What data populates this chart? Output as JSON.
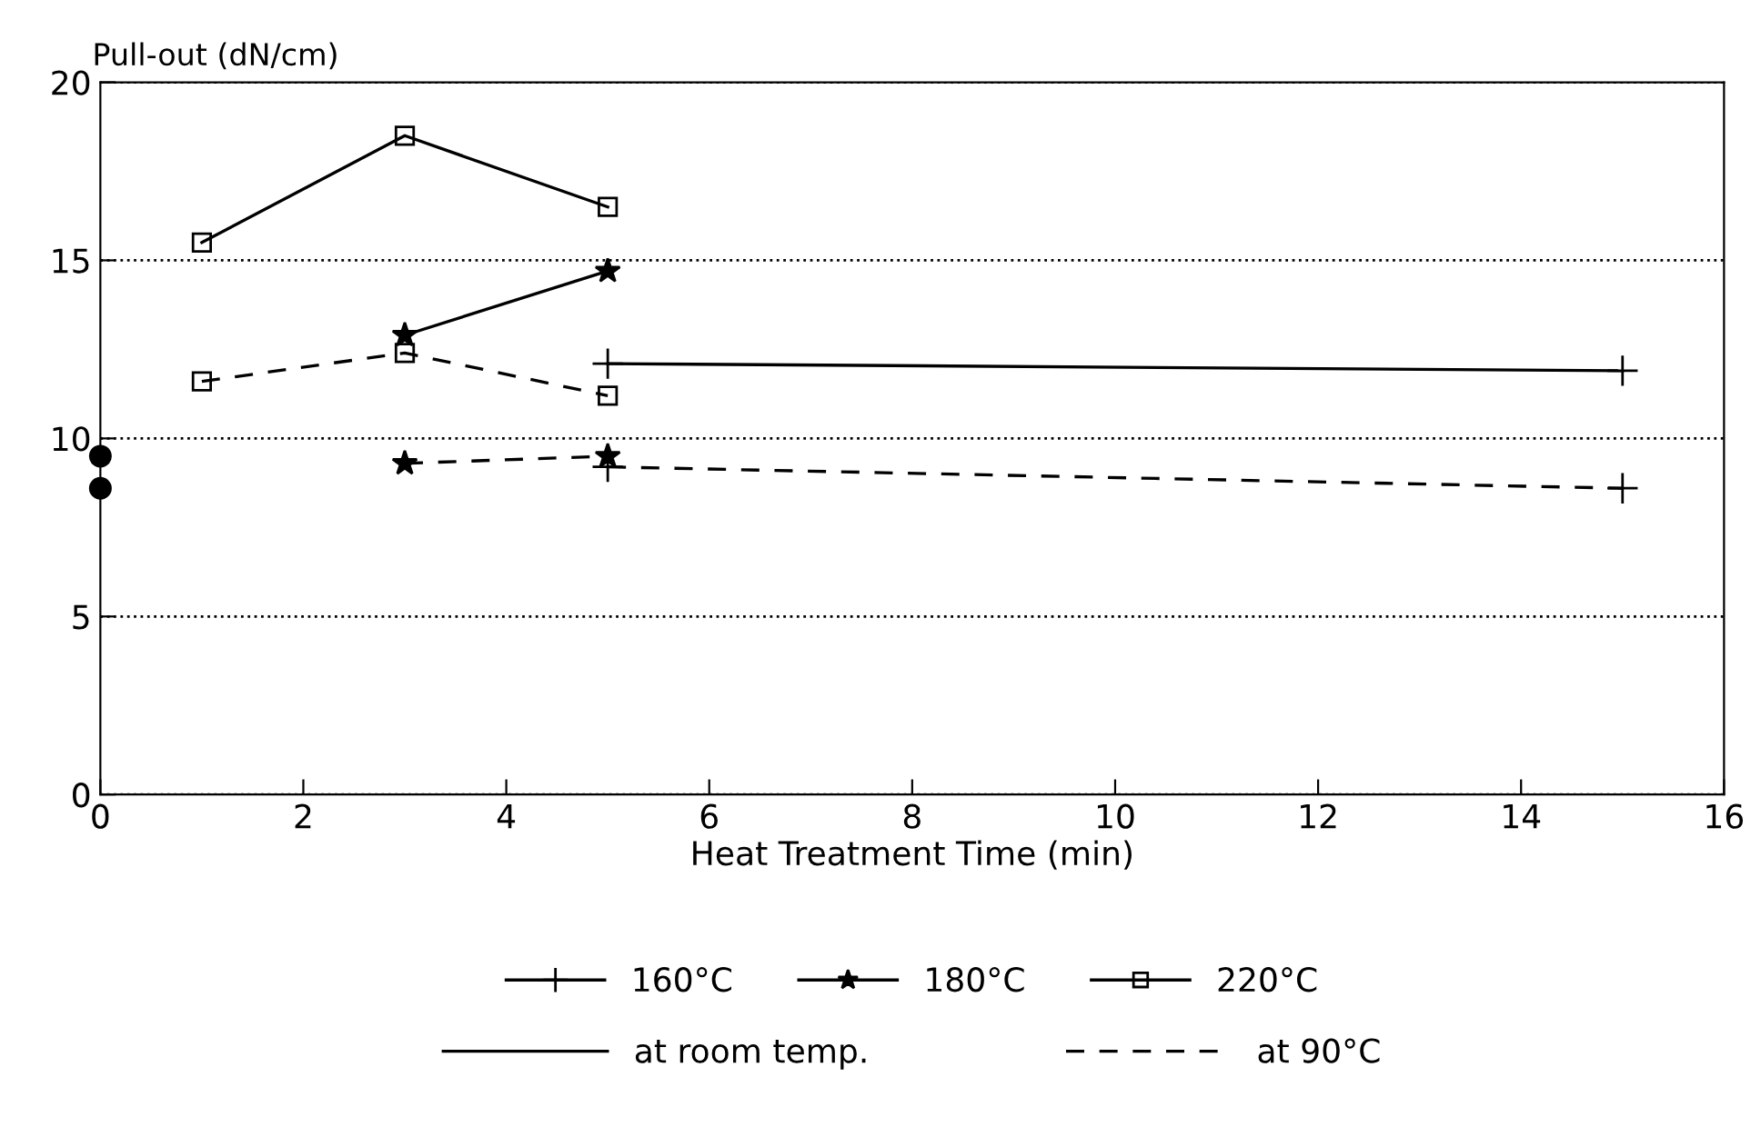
{
  "chart_data": {
    "type": "line",
    "xlabel": "Heat Treatment Time (min)",
    "ylabel": "Pull-out (dN/cm)",
    "xlim": [
      0,
      16
    ],
    "xticks": [
      0,
      2,
      4,
      6,
      8,
      10,
      12,
      14,
      16
    ],
    "ylim": [
      0,
      20
    ],
    "yticks": [
      0,
      5,
      10,
      15,
      20
    ],
    "grid": "y",
    "legend": "bottom",
    "series": [
      {
        "name": "160°C",
        "color": "#000000",
        "marker": "cross",
        "line_style": "solid",
        "x": [
          5,
          15
        ],
        "values": [
          12.1,
          11.9
        ]
      },
      {
        "name": "180°C",
        "color": "#000000",
        "marker": "star",
        "line_style": "solid",
        "x": [
          3,
          5
        ],
        "values": [
          12.9,
          14.7
        ]
      },
      {
        "name": "220°C",
        "color": "#000000",
        "marker": "square",
        "line_style": "solid",
        "x": [
          1,
          3,
          5
        ],
        "values": [
          15.5,
          18.5,
          16.5
        ]
      },
      {
        "color": "#000000",
        "marker": "cross",
        "line_style": "dashed",
        "x": [
          5,
          15
        ],
        "values": [
          9.2,
          8.6
        ]
      },
      {
        "color": "#000000",
        "marker": "star",
        "line_style": "dashed",
        "x": [
          3,
          5
        ],
        "values": [
          9.3,
          9.5
        ]
      },
      {
        "color": "#000000",
        "marker": "square",
        "line_style": "dashed",
        "x": [
          1,
          3,
          5
        ],
        "values": [
          11.6,
          12.4,
          11.2
        ]
      },
      {
        "type": "scatter",
        "color": "#000000",
        "marker": "circle",
        "x": [
          0,
          0
        ],
        "values": [
          9.5,
          8.6
        ]
      }
    ],
    "annotations": [
      "at room temp.",
      "at 90°C"
    ]
  }
}
